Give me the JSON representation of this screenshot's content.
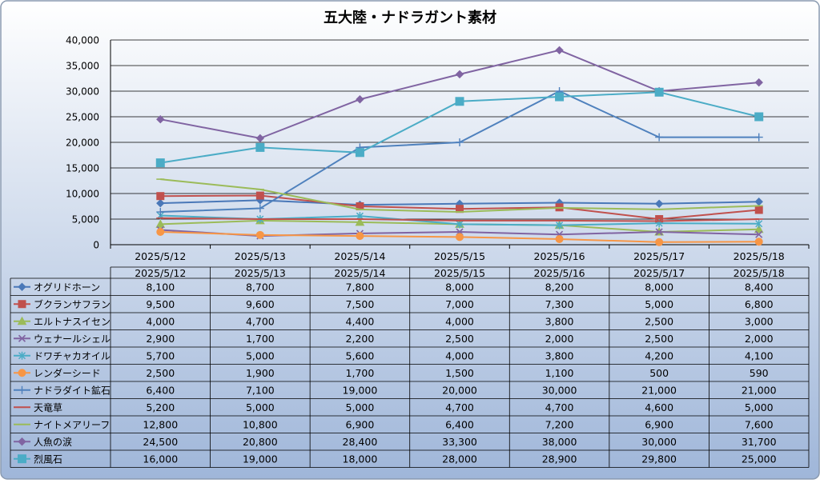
{
  "colors": {
    "background_top": "#ffffff",
    "background_bottom": "#9fb6d9",
    "border": "#8a9ab0",
    "gridline": "#000000"
  },
  "chart_data": {
    "type": "line",
    "title": "五大陸・ナドラガント素材",
    "xlabel": "",
    "ylabel": "",
    "categories": [
      "2025/5/12",
      "2025/5/13",
      "2025/5/14",
      "2025/5/15",
      "2025/5/16",
      "2025/5/17",
      "2025/5/18"
    ],
    "ylim": [
      0,
      40000
    ],
    "yticks": [
      0,
      5000,
      10000,
      15000,
      20000,
      25000,
      30000,
      35000,
      40000
    ],
    "ytick_labels": [
      "0",
      "5,000",
      "10,000",
      "15,000",
      "20,000",
      "25,000",
      "30,000",
      "35,000",
      "40,000"
    ],
    "grid": true,
    "legend": "data-table",
    "series": [
      {
        "name": "オグリドホーン",
        "color": "#4a78b8",
        "marker": "diamond",
        "values": [
          8100,
          8700,
          7800,
          8000,
          8200,
          8000,
          8400
        ],
        "labels": [
          "8,100",
          "8,700",
          "7,800",
          "8,000",
          "8,200",
          "8,000",
          "8,400"
        ]
      },
      {
        "name": "ブクランサフラン",
        "color": "#c0504d",
        "marker": "square",
        "values": [
          9500,
          9600,
          7500,
          7000,
          7300,
          5000,
          6800
        ],
        "labels": [
          "9,500",
          "9,600",
          "7,500",
          "7,000",
          "7,300",
          "5,000",
          "6,800"
        ]
      },
      {
        "name": "エルトナスイセン",
        "color": "#9bbb59",
        "marker": "triangle",
        "values": [
          4000,
          4700,
          4400,
          4000,
          3800,
          2500,
          3000
        ],
        "labels": [
          "4,000",
          "4,700",
          "4,400",
          "4,000",
          "3,800",
          "2,500",
          "3,000"
        ]
      },
      {
        "name": "ウェナールシェル",
        "color": "#8064a2",
        "marker": "x",
        "values": [
          2900,
          1700,
          2200,
          2500,
          2000,
          2500,
          2000
        ],
        "labels": [
          "2,900",
          "1,700",
          "2,200",
          "2,500",
          "2,000",
          "2,500",
          "2,000"
        ]
      },
      {
        "name": "ドワチャカオイル",
        "color": "#4bacc6",
        "marker": "star",
        "values": [
          5700,
          5000,
          5600,
          4000,
          3800,
          4200,
          4100
        ],
        "labels": [
          "5,700",
          "5,000",
          "5,600",
          "4,000",
          "3,800",
          "4,200",
          "4,100"
        ]
      },
      {
        "name": "レンダーシード",
        "color": "#f79646",
        "marker": "circle",
        "values": [
          2500,
          1900,
          1700,
          1500,
          1100,
          500,
          590
        ],
        "labels": [
          "2,500",
          "1,900",
          "1,700",
          "1,500",
          "1,100",
          "500",
          "590"
        ]
      },
      {
        "name": "ナドラダイト鉱石",
        "color": "#4f81bd",
        "marker": "plus",
        "values": [
          6400,
          7100,
          19000,
          20000,
          30000,
          21000,
          21000
        ],
        "labels": [
          "6,400",
          "7,100",
          "19,000",
          "20,000",
          "30,000",
          "21,000",
          "21,000"
        ]
      },
      {
        "name": "天竜草",
        "color": "#c0504d",
        "marker": "dash",
        "values": [
          5200,
          5000,
          5000,
          4700,
          4700,
          4600,
          5000
        ],
        "labels": [
          "5,200",
          "5,000",
          "5,000",
          "4,700",
          "4,700",
          "4,600",
          "5,000"
        ]
      },
      {
        "name": "ナイトメアリーフ",
        "color": "#9bbb59",
        "marker": "dash",
        "values": [
          12800,
          10800,
          6900,
          6400,
          7200,
          6900,
          7600
        ],
        "labels": [
          "12,800",
          "10,800",
          "6,900",
          "6,400",
          "7,200",
          "6,900",
          "7,600"
        ]
      },
      {
        "name": "人魚の涙",
        "color": "#8064a2",
        "marker": "diamond",
        "values": [
          24500,
          20800,
          28400,
          33300,
          38000,
          30000,
          31700
        ],
        "labels": [
          "24,500",
          "20,800",
          "28,400",
          "33,300",
          "38,000",
          "30,000",
          "31,700"
        ]
      },
      {
        "name": "烈風石",
        "color": "#4bacc6",
        "marker": "square-big",
        "values": [
          16000,
          19000,
          18000,
          28000,
          28900,
          29800,
          25000
        ],
        "labels": [
          "16,000",
          "19,000",
          "18,000",
          "28,000",
          "28,900",
          "29,800",
          "25,000"
        ]
      }
    ]
  }
}
